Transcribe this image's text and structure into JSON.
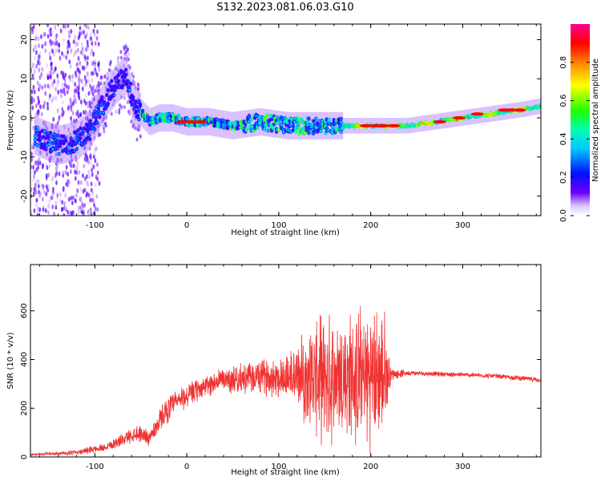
{
  "figure": {
    "title": "S132.2023.081.06.03.G10"
  },
  "chart_data": [
    {
      "type": "heatmap",
      "title": "S132.2023.081.06.03.G10",
      "xlabel": "Height of straight line (km)",
      "ylabel": "Frequency (Hz)",
      "xlim": [
        -170,
        385
      ],
      "ylim": [
        -25,
        24
      ],
      "xticks": [
        -100,
        0,
        100,
        200,
        300
      ],
      "yticks": [
        -20,
        -10,
        0,
        10,
        20
      ],
      "colorbar": {
        "label": "Normalized spectral amplitude",
        "range": [
          0,
          1
        ],
        "ticks": [
          0.0,
          0.2,
          0.4,
          0.6,
          0.8
        ],
        "tick_labels": [
          "0.0",
          "0.2",
          "0.4",
          "0.6",
          "0.8"
        ],
        "colormap": "rainbow (white-violet-blue-cyan-green-yellow-red-magenta)"
      },
      "ridge": [
        {
          "x": -160,
          "y": -5
        },
        {
          "x": -140,
          "y": -7
        },
        {
          "x": -120,
          "y": -6
        },
        {
          "x": -105,
          "y": -3
        },
        {
          "x": -95,
          "y": 2
        },
        {
          "x": -85,
          "y": 6
        },
        {
          "x": -75,
          "y": 9
        },
        {
          "x": -65,
          "y": 11
        },
        {
          "x": -58,
          "y": 3
        },
        {
          "x": -48,
          "y": 1
        },
        {
          "x": -40,
          "y": -1
        },
        {
          "x": -30,
          "y": 0
        },
        {
          "x": -15,
          "y": 0
        },
        {
          "x": 0,
          "y": -1
        },
        {
          "x": 25,
          "y": -1
        },
        {
          "x": 50,
          "y": -2
        },
        {
          "x": 80,
          "y": -1
        },
        {
          "x": 110,
          "y": -2
        },
        {
          "x": 140,
          "y": -2
        },
        {
          "x": 167,
          "y": -2
        },
        {
          "x": 200,
          "y": -2
        },
        {
          "x": 240,
          "y": -2
        },
        {
          "x": 270,
          "y": -1
        },
        {
          "x": 300,
          "y": 0
        },
        {
          "x": 330,
          "y": 1
        },
        {
          "x": 360,
          "y": 2
        },
        {
          "x": 385,
          "y": 3
        }
      ],
      "grid": false
    },
    {
      "type": "line",
      "xlabel": "Height of straight line (km)",
      "ylabel": "SNR (10 * v/v)",
      "xlim": [
        -170,
        385
      ],
      "ylim": [
        0,
        790
      ],
      "xticks": [
        -100,
        0,
        100,
        200,
        300
      ],
      "yticks": [
        0,
        200,
        400,
        600
      ],
      "series_color": "#f03232",
      "envelope": {
        "x": [
          -170,
          -130,
          -110,
          -90,
          -70,
          -55,
          -40,
          -25,
          -10,
          0,
          20,
          40,
          60,
          80,
          100,
          120,
          135,
          150,
          165,
          180,
          200,
          215,
          222,
          240,
          280,
          320,
          360,
          385
        ],
        "center": [
          10,
          15,
          25,
          40,
          70,
          100,
          80,
          180,
          230,
          250,
          290,
          320,
          320,
          330,
          330,
          330,
          330,
          320,
          330,
          320,
          330,
          330,
          340,
          345,
          340,
          335,
          325,
          315
        ],
        "amp": [
          5,
          10,
          15,
          20,
          30,
          40,
          40,
          60,
          60,
          60,
          50,
          60,
          70,
          80,
          100,
          150,
          250,
          300,
          300,
          320,
          330,
          300,
          30,
          12,
          12,
          12,
          12,
          12
        ]
      },
      "grid": false
    }
  ]
}
